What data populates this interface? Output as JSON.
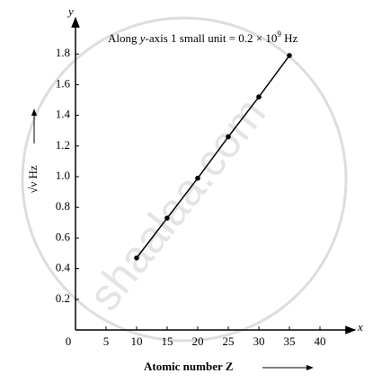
{
  "chart_data": {
    "type": "line",
    "annotation": [
      "Along ",
      "y",
      "-axis 1 small unit = 0.2 × 10",
      "9",
      " Hz"
    ],
    "y_axis_name": "y",
    "x_axis_name": "x",
    "ylabel": "√ν Hz",
    "xlabel": "Atomic number Z",
    "watermark": "shaalaa.com",
    "x": [
      10,
      15,
      20,
      25,
      30,
      35
    ],
    "series": [
      {
        "color": "#000000",
        "values": [
          0.47,
          0.73,
          0.99,
          1.26,
          1.52,
          1.79
        ]
      }
    ],
    "xlim": [
      0,
      45
    ],
    "ylim": [
      0,
      2.0
    ],
    "xticks": [
      0,
      5,
      10,
      15,
      20,
      25,
      30,
      35,
      40
    ],
    "yticks": [
      0.2,
      0.4,
      0.6,
      0.8,
      {
        "value": 1,
        "label": "1.0"
      },
      1.2,
      1.4,
      1.6,
      1.8
    ],
    "grid": false
  }
}
